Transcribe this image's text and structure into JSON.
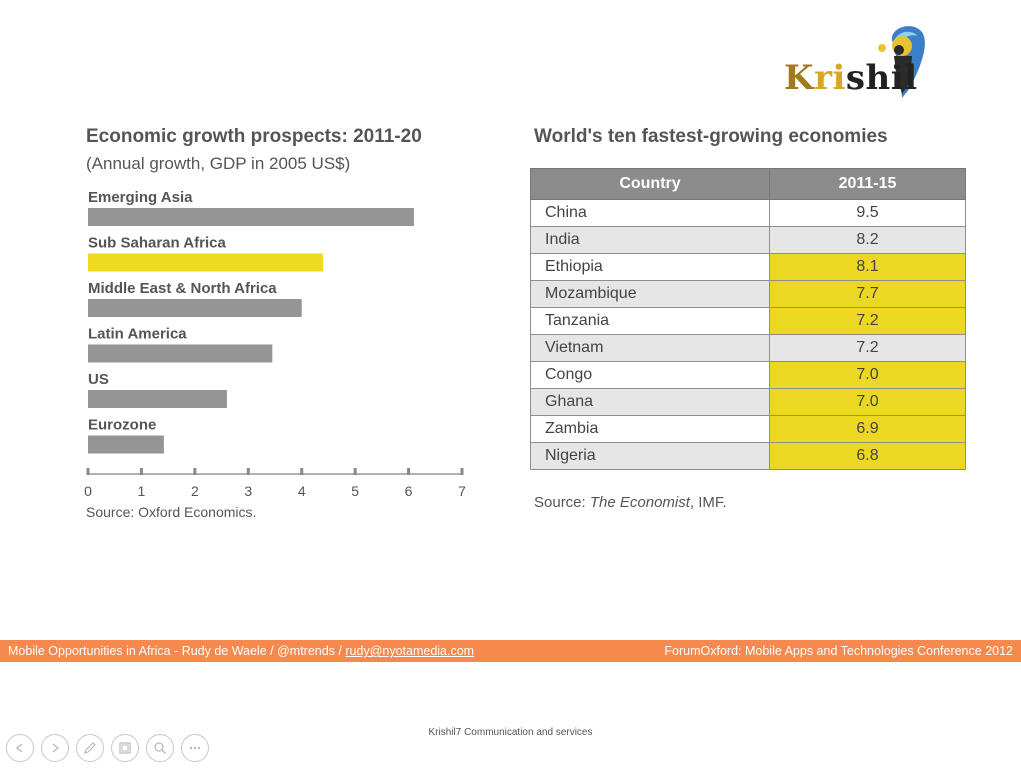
{
  "logo": {
    "text_a": "K",
    "text_b": "ri",
    "text_c": "shil"
  },
  "chart_data": [
    {
      "type": "bar",
      "orientation": "horizontal",
      "title": "Economic growth prospects: 2011-20",
      "subtitle": "(Annual growth, GDP in 2005 US$)",
      "categories": [
        "Emerging Asia",
        "Sub Saharan Africa",
        "Middle East & North Africa",
        "Latin America",
        "US",
        "Eurozone"
      ],
      "values": [
        6.1,
        4.4,
        4.0,
        3.45,
        2.6,
        1.42
      ],
      "highlight": [
        "Sub Saharan Africa"
      ],
      "xlim": [
        0,
        7
      ],
      "xticks": [
        "0",
        "1",
        "2",
        "3",
        "4",
        "5",
        "6",
        "7"
      ],
      "grid": false,
      "colors": {
        "bar": "#959595",
        "highlight": "#eeda1e"
      },
      "source": "Source: Oxford Economics."
    },
    {
      "type": "table",
      "title": "World's ten fastest-growing economies",
      "columns": [
        "Country",
        "2011-15"
      ],
      "rows": [
        {
          "country": "China",
          "value": "9.5",
          "highlight": false
        },
        {
          "country": "India",
          "value": "8.2",
          "highlight": false
        },
        {
          "country": "Ethiopia",
          "value": "8.1",
          "highlight": true
        },
        {
          "country": "Mozambique",
          "value": "7.7",
          "highlight": true
        },
        {
          "country": "Tanzania",
          "value": "7.2",
          "highlight": true
        },
        {
          "country": "Vietnam",
          "value": "7.2",
          "highlight": false
        },
        {
          "country": "Congo",
          "value": "7.0",
          "highlight": true
        },
        {
          "country": "Ghana",
          "value": "7.0",
          "highlight": true
        },
        {
          "country": "Zambia",
          "value": "6.9",
          "highlight": true
        },
        {
          "country": "Nigeria",
          "value": "6.8",
          "highlight": true
        }
      ],
      "source_prefix": "Source: ",
      "source_italic": "The Economist",
      "source_suffix": ", IMF."
    }
  ],
  "footer": {
    "left_text": "Mobile Opportunities in Africa - Rudy de Waele / @mtrends / ",
    "email": "rudy@nyotamedia.com",
    "right_text": "ForumOxford: Mobile Apps and Technologies Conference 2012",
    "band_color": "#f7884e"
  },
  "credit": "Krishil7 Communication and services",
  "controls": [
    {
      "icon": "previous-icon"
    },
    {
      "icon": "next-icon"
    },
    {
      "icon": "pen-icon"
    },
    {
      "icon": "slides-icon"
    },
    {
      "icon": "zoom-icon"
    },
    {
      "icon": "more-icon"
    }
  ]
}
